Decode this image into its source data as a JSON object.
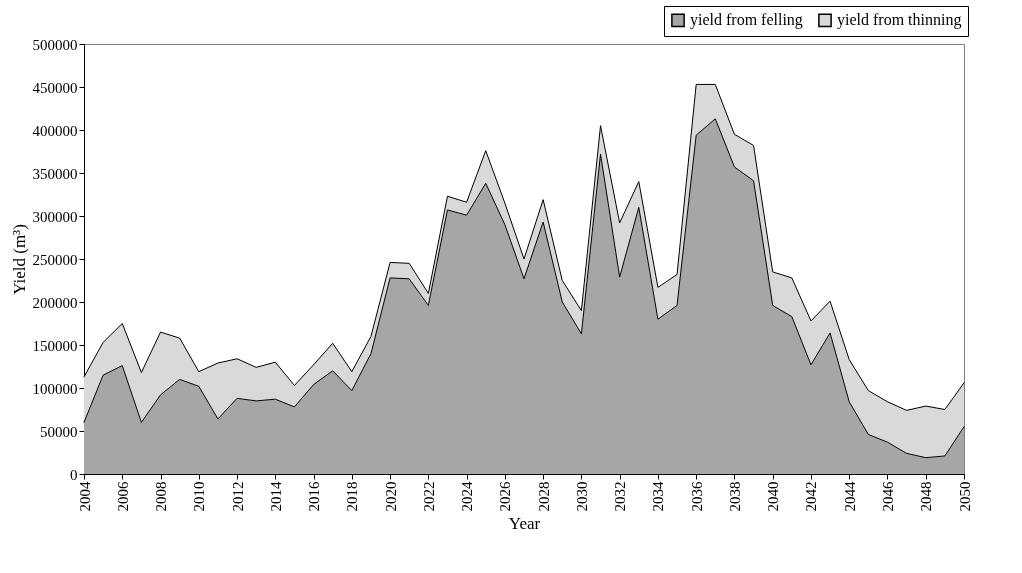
{
  "chart_data": {
    "type": "area",
    "stacked": true,
    "xlabel": "Year",
    "ylabel": "Yield (m³)",
    "x": [
      2004,
      2005,
      2006,
      2007,
      2008,
      2009,
      2010,
      2011,
      2012,
      2013,
      2014,
      2015,
      2016,
      2017,
      2018,
      2019,
      2020,
      2021,
      2022,
      2023,
      2024,
      2025,
      2026,
      2027,
      2028,
      2029,
      2030,
      2031,
      2032,
      2033,
      2034,
      2035,
      2036,
      2037,
      2038,
      2039,
      2040,
      2041,
      2042,
      2043,
      2044,
      2045,
      2046,
      2047,
      2048,
      2049,
      2050
    ],
    "series": [
      {
        "name": "yield from felling",
        "color": "#a6a6a6",
        "values": [
          60000,
          115000,
          126000,
          60000,
          92000,
          110000,
          102000,
          64000,
          88000,
          85000,
          87000,
          78000,
          104000,
          120000,
          97000,
          140000,
          228000,
          227000,
          196000,
          307000,
          301000,
          338000,
          290000,
          227000,
          293000,
          200000,
          163000,
          372000,
          229000,
          310000,
          180000,
          196000,
          394000,
          413000,
          357000,
          341000,
          196000,
          183000,
          127000,
          164000,
          84000,
          46000,
          37000,
          24000,
          19000,
          21000,
          55000
        ]
      },
      {
        "name": "yield from thinning",
        "color": "#d9d9d9",
        "values": [
          53000,
          38000,
          49000,
          58000,
          73000,
          48000,
          17000,
          65000,
          46000,
          39000,
          43000,
          25000,
          23000,
          32000,
          22000,
          20000,
          18000,
          18000,
          14000,
          16000,
          15000,
          38000,
          25000,
          23000,
          26000,
          25000,
          27000,
          33000,
          63000,
          30000,
          37000,
          36000,
          59000,
          40000,
          38000,
          41000,
          39000,
          45000,
          51000,
          37000,
          49000,
          51000,
          47000,
          50000,
          60000,
          54000,
          51000
        ]
      }
    ],
    "xlim": [
      2004,
      2050
    ],
    "xticks": [
      2004,
      2006,
      2008,
      2010,
      2012,
      2014,
      2016,
      2018,
      2020,
      2022,
      2024,
      2026,
      2028,
      2030,
      2032,
      2034,
      2036,
      2038,
      2040,
      2042,
      2044,
      2046,
      2048,
      2050
    ],
    "ylim": [
      0,
      500000
    ],
    "yticks": [
      0,
      50000,
      100000,
      150000,
      200000,
      250000,
      300000,
      350000,
      400000,
      450000,
      500000
    ],
    "grid": false,
    "legend": "top right"
  }
}
